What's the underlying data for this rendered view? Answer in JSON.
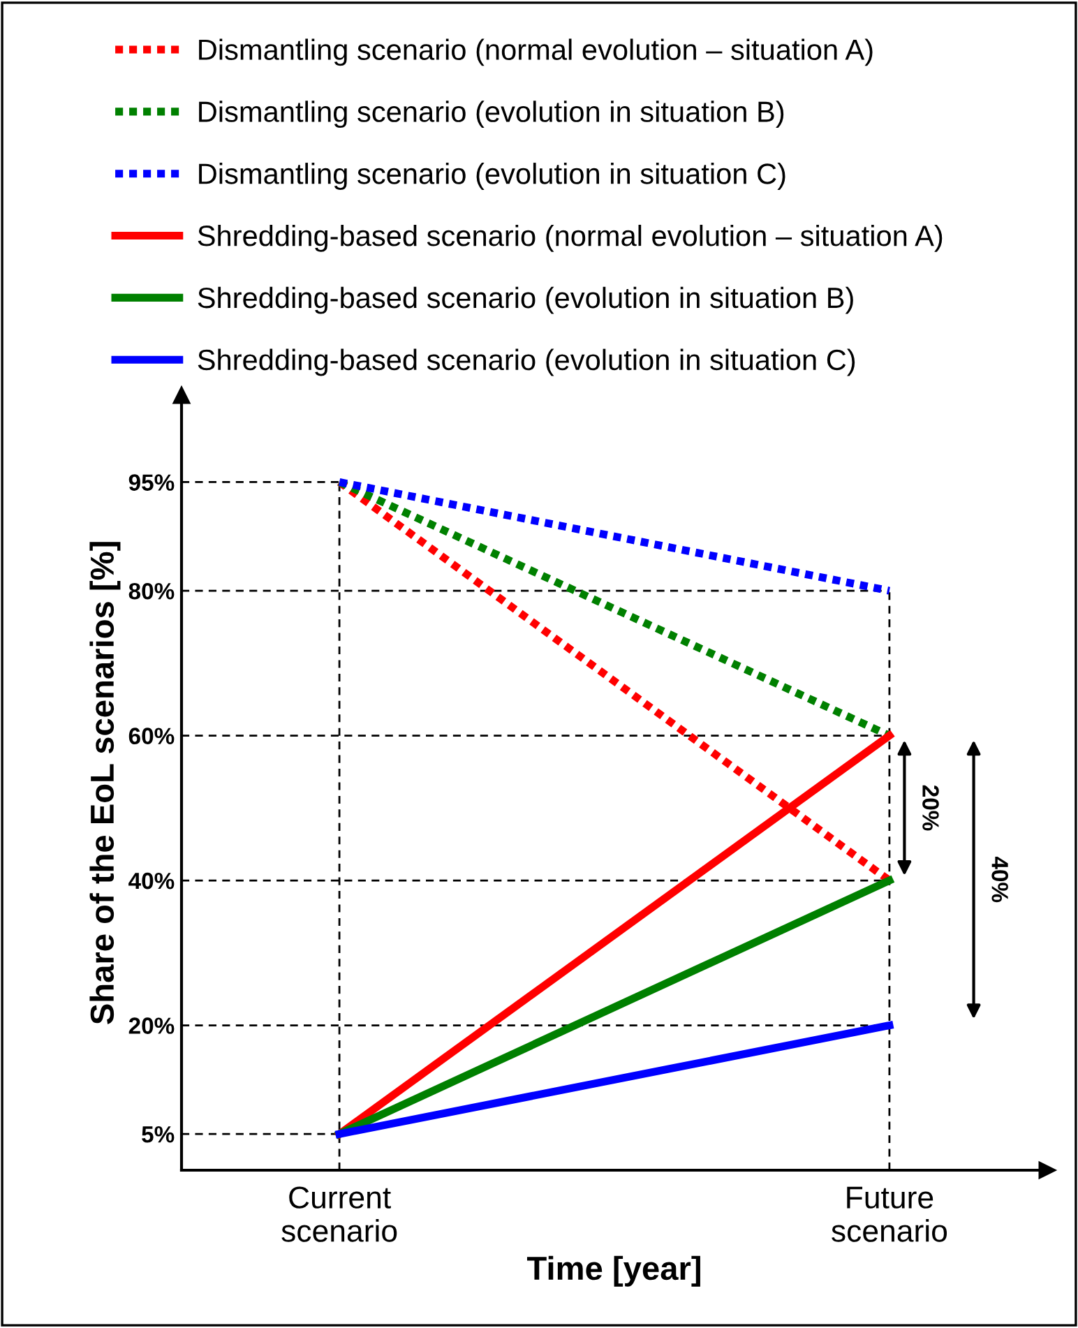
{
  "chart_data": {
    "type": "line",
    "xlabel": "Time [year]",
    "ylabel": "Share of the EoL scenarios [%]",
    "categories": [
      "Current\nscenario",
      "Future\nscenario"
    ],
    "series": [
      {
        "name": "Dismantling scenario (normal evolution – situation A)",
        "color": "#ff0000",
        "line_style": "dotted",
        "values": [
          95,
          40
        ]
      },
      {
        "name": "Dismantling scenario (evolution in situation B)",
        "color": "#008000",
        "line_style": "dotted",
        "values": [
          95,
          60
        ]
      },
      {
        "name": "Dismantling scenario (evolution in situation C)",
        "color": "#0000ff",
        "line_style": "dotted",
        "values": [
          95,
          80
        ]
      },
      {
        "name": "Shredding-based scenario (normal evolution – situation A)",
        "color": "#ff0000",
        "line_style": "solid",
        "values": [
          5,
          60
        ]
      },
      {
        "name": "Shredding-based scenario (evolution in situation B)",
        "color": "#008000",
        "line_style": "solid",
        "values": [
          5,
          40
        ]
      },
      {
        "name": "Shredding-based scenario (evolution in situation C)",
        "color": "#0000ff",
        "line_style": "solid",
        "values": [
          5,
          20
        ]
      }
    ],
    "ylim": [
      0,
      107
    ],
    "yticks": [
      {
        "value": 5,
        "label": "5%"
      },
      {
        "value": 20,
        "label": "20%"
      },
      {
        "value": 40,
        "label": "40%"
      },
      {
        "value": 60,
        "label": "60%"
      },
      {
        "value": 80,
        "label": "80%"
      },
      {
        "value": 95,
        "label": "95%"
      }
    ],
    "grid": "x",
    "legend": "top",
    "marker": "none",
    "ref_lines": [
      {
        "axis": "y",
        "value": 5,
        "color": "#000000",
        "line_style": "dashed"
      },
      {
        "axis": "y",
        "value": 20,
        "color": "#000000",
        "line_style": "dashed"
      },
      {
        "axis": "y",
        "value": 40,
        "color": "#000000",
        "line_style": "dashed"
      },
      {
        "axis": "y",
        "value": 60,
        "color": "#000000",
        "line_style": "dashed"
      },
      {
        "axis": "y",
        "value": 80,
        "color": "#000000",
        "line_style": "dashed"
      },
      {
        "axis": "y",
        "value": 95,
        "color": "#000000",
        "line_style": "dashed"
      }
    ],
    "annotations": [
      "20%",
      "40%"
    ]
  }
}
